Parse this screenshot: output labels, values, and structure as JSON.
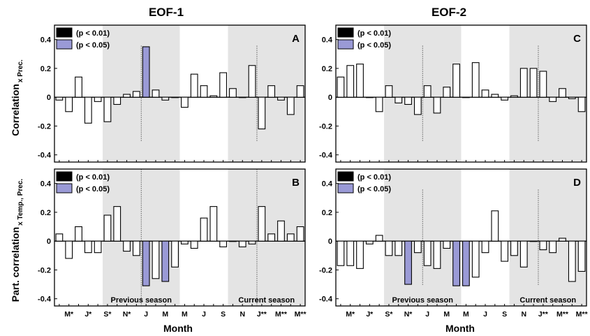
{
  "chart_data": {
    "type": "bar",
    "xlabel": "Month",
    "ylim": [
      -0.45,
      0.5
    ],
    "yticks": [
      -0.4,
      -0.2,
      0,
      0.2,
      0.4
    ],
    "ytick_labels": [
      "-0.4",
      "-0.2",
      "0",
      "0.2",
      "0.4"
    ],
    "month_labels": [
      "M*",
      "J*",
      "S*",
      "N*",
      "J",
      "M",
      "M",
      "J",
      "S",
      "N",
      "J**",
      "M**",
      "M**"
    ],
    "legend": {
      "position": "top-left",
      "entries": [
        {
          "label": "(p < 0.01)",
          "color": "#000000"
        },
        {
          "label": "(p < 0.05)",
          "color": "#9a9ad6"
        }
      ]
    },
    "annotations": {
      "previous_season": "Previous season",
      "current_season": "Current season"
    },
    "columns": [
      {
        "title": "EOF-1"
      },
      {
        "title": "EOF-2"
      }
    ],
    "rows": [
      {
        "ylabel": "Correlation",
        "ylabel_sub": "x Prec."
      },
      {
        "ylabel": "Part. correlation",
        "ylabel_sub": "x Temp., Prec."
      }
    ],
    "panels": [
      {
        "id": "A",
        "row": 0,
        "col": 0,
        "values": [
          -0.02,
          -0.1,
          0.14,
          -0.18,
          -0.03,
          -0.17,
          -0.05,
          0.02,
          0.04,
          0.35,
          0.05,
          -0.02,
          0.0,
          -0.07,
          0.16,
          0.08,
          0.01,
          0.17,
          0.06,
          0.0,
          0.22,
          -0.22,
          0.08,
          -0.02,
          -0.12,
          0.08
        ],
        "sig": [
          "",
          "",
          "",
          "",
          "",
          "",
          "",
          "",
          "",
          "p<0.05",
          "",
          "",
          "",
          "",
          "",
          "",
          "",
          "",
          "",
          "",
          "",
          "",
          "",
          "",
          "",
          ""
        ]
      },
      {
        "id": "B",
        "row": 1,
        "col": 0,
        "values": [
          0.05,
          -0.12,
          0.1,
          -0.08,
          -0.08,
          0.18,
          0.24,
          -0.07,
          -0.1,
          -0.31,
          -0.26,
          -0.28,
          -0.18,
          -0.02,
          -0.05,
          0.16,
          0.24,
          -0.04,
          0.0,
          -0.04,
          -0.02,
          0.24,
          0.05,
          0.14,
          0.05,
          0.1
        ],
        "sig": [
          "",
          "",
          "",
          "",
          "",
          "",
          "",
          "",
          "",
          "p<0.05",
          "",
          "p<0.05",
          "",
          "",
          "",
          "",
          "",
          "",
          "",
          "",
          "",
          "",
          "",
          "",
          "",
          ""
        ]
      },
      {
        "id": "C",
        "row": 0,
        "col": 1,
        "values": [
          0.14,
          0.22,
          0.23,
          0.0,
          -0.1,
          0.08,
          -0.04,
          -0.05,
          -0.12,
          0.08,
          -0.11,
          0.07,
          0.23,
          0.0,
          0.24,
          0.05,
          0.02,
          -0.02,
          0.01,
          0.2,
          0.2,
          0.18,
          -0.03,
          0.06,
          -0.01,
          -0.1
        ],
        "sig": [
          "",
          "",
          "",
          "",
          "",
          "",
          "",
          "",
          "",
          "",
          "",
          "",
          "",
          "",
          "",
          "",
          "",
          "",
          "",
          "",
          "",
          "",
          "",
          "",
          "",
          ""
        ]
      },
      {
        "id": "D",
        "row": 1,
        "col": 1,
        "values": [
          -0.17,
          -0.17,
          -0.19,
          -0.02,
          0.04,
          -0.1,
          -0.1,
          -0.3,
          -0.08,
          -0.17,
          -0.19,
          -0.05,
          -0.31,
          -0.31,
          -0.25,
          -0.08,
          0.21,
          -0.14,
          -0.1,
          -0.18,
          0.0,
          -0.06,
          -0.08,
          0.02,
          -0.28,
          -0.21
        ],
        "sig": [
          "",
          "",
          "",
          "",
          "",
          "",
          "",
          "p<0.05",
          "",
          "",
          "",
          "",
          "p<0.05",
          "p<0.05",
          "",
          "",
          "",
          "",
          "",
          "",
          "",
          "",
          "",
          "",
          "",
          ""
        ]
      }
    ]
  }
}
